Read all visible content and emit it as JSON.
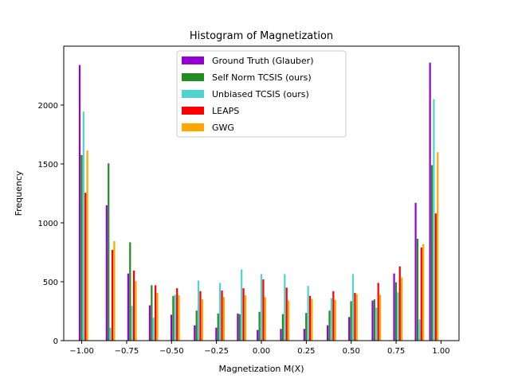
{
  "chart_data": {
    "type": "bar",
    "title": "Histogram of Magnetization",
    "xlabel": "Magnetization M(X)",
    "ylabel": "Frequency",
    "xlim": [
      -1.1,
      1.1
    ],
    "ylim": [
      0,
      2500
    ],
    "xticks": [
      -1.0,
      -0.75,
      -0.5,
      -0.25,
      0.0,
      0.25,
      0.5,
      0.75,
      1.0
    ],
    "xtick_labels": [
      "−1.00",
      "−0.75",
      "−0.50",
      "−0.25",
      "0.00",
      "0.25",
      "0.50",
      "0.75",
      "1.00"
    ],
    "yticks": [
      0,
      500,
      1000,
      1500,
      2000
    ],
    "ytick_labels": [
      "0",
      "500",
      "1000",
      "1500",
      "2000"
    ],
    "legend_position": "upper center",
    "bins": [
      -0.99,
      -0.84,
      -0.72,
      -0.6,
      -0.48,
      -0.35,
      -0.23,
      -0.11,
      0.0,
      0.13,
      0.26,
      0.39,
      0.51,
      0.64,
      0.76,
      0.88,
      0.96
    ],
    "series": [
      {
        "name": "Ground Truth (Glauber)",
        "color": "#9400D3",
        "values": [
          2340,
          1150,
          570,
          300,
          220,
          130,
          110,
          230,
          90,
          100,
          100,
          130,
          200,
          340,
          570,
          1170,
          2360
        ]
      },
      {
        "name": "Self Norm TCSIS (ours)",
        "color": "#228B22",
        "values": [
          1575,
          1505,
          835,
          470,
          380,
          255,
          230,
          225,
          245,
          225,
          235,
          255,
          335,
          350,
          495,
          865,
          1490
        ]
      },
      {
        "name": "Unbiased TCSIS (ours)",
        "color": "#4ED3CF",
        "values": [
          1945,
          110,
          295,
          195,
          390,
          510,
          490,
          605,
          565,
          565,
          465,
          360,
          565,
          280,
          410,
          180,
          2050
        ]
      },
      {
        "name": "LEAPS",
        "color": "#FF0000",
        "values": [
          1255,
          770,
          595,
          470,
          445,
          420,
          425,
          445,
          520,
          450,
          380,
          420,
          405,
          490,
          630,
          790,
          1080
        ]
      },
      {
        "name": "GWG",
        "color": "#FFA500",
        "values": [
          1615,
          845,
          505,
          405,
          385,
          350,
          370,
          385,
          370,
          340,
          355,
          345,
          395,
          390,
          535,
          820,
          1600
        ]
      }
    ]
  }
}
